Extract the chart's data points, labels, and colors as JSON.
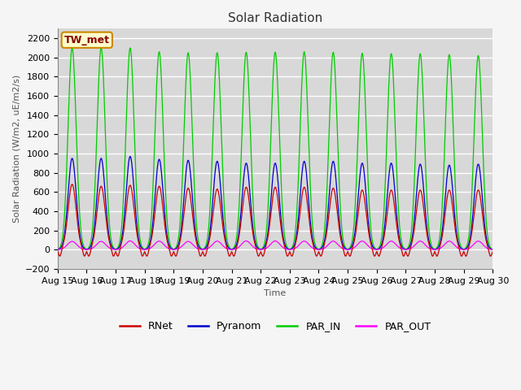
{
  "title": "Solar Radiation",
  "ylabel": "Solar Radiation (W/m2, uE/m2/s)",
  "xlabel": "Time",
  "station_label": "TW_met",
  "ylim": [
    -200,
    2300
  ],
  "yticks": [
    -200,
    0,
    200,
    400,
    600,
    800,
    1000,
    1200,
    1400,
    1600,
    1800,
    2000,
    2200
  ],
  "num_days": 15,
  "day_labels": [
    "Aug 15",
    "Aug 16",
    "Aug 17",
    "Aug 18",
    "Aug 19",
    "Aug 20",
    "Aug 21",
    "Aug 22",
    "Aug 23",
    "Aug 24",
    "Aug 25",
    "Aug 26",
    "Aug 27",
    "Aug 28",
    "Aug 29",
    "Aug 30"
  ],
  "colors": {
    "RNet": "#cc0000",
    "Pyranom": "#0000cc",
    "PAR_IN": "#00cc00",
    "PAR_OUT": "#ff00ff"
  },
  "plot_bg": "#d8d8d8",
  "fig_bg": "#f5f5f5",
  "grid_color": "#ffffff",
  "title_fontsize": 11,
  "label_fontsize": 8,
  "tick_fontsize": 8,
  "legend_fontsize": 9,
  "station_box_facecolor": "#ffffcc",
  "station_box_edgecolor": "#cc8800",
  "station_text_color": "#880000"
}
